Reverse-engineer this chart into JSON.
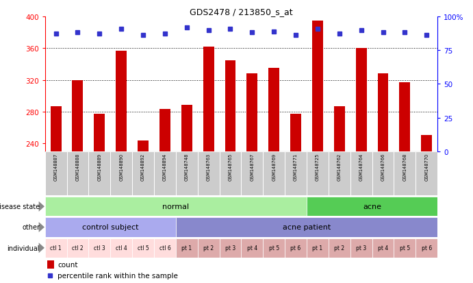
{
  "title": "GDS2478 / 213850_s_at",
  "samples": [
    "GSM148887",
    "GSM148888",
    "GSM148889",
    "GSM148890",
    "GSM148892",
    "GSM148894",
    "GSM148748",
    "GSM148763",
    "GSM148765",
    "GSM148767",
    "GSM148769",
    "GSM148771",
    "GSM148725",
    "GSM148762",
    "GSM148764",
    "GSM148766",
    "GSM148768",
    "GSM148770"
  ],
  "counts": [
    287,
    320,
    277,
    357,
    244,
    283,
    289,
    362,
    345,
    328,
    335,
    277,
    395,
    287,
    360,
    328,
    317,
    251
  ],
  "percentile_ranks": [
    87,
    88,
    87,
    91,
    86,
    87,
    92,
    90,
    91,
    88,
    89,
    86,
    91,
    87,
    90,
    88,
    88,
    86
  ],
  "ylim_left": [
    230,
    400
  ],
  "ylim_right": [
    0,
    100
  ],
  "yticks_left": [
    240,
    280,
    320,
    360,
    400
  ],
  "yticks_right": [
    0,
    25,
    50,
    75,
    100
  ],
  "bar_color": "#cc0000",
  "dot_color": "#3333cc",
  "disease_state_normal_color": "#aaeea0",
  "disease_state_acne_color": "#55cc55",
  "other_control_color": "#aaaaee",
  "other_acne_color": "#8888cc",
  "individual_control_color": "#ffdddd",
  "individual_acne_color": "#ddaaaa",
  "individual_labels": [
    "ctl 1",
    "ctl 2",
    "ctl 3",
    "ctl 4",
    "ctl 5",
    "ctl 6",
    "pt 1",
    "pt 2",
    "pt 3",
    "pt 4",
    "pt 5",
    "pt 6",
    "pt 1",
    "pt 2",
    "pt 3",
    "pt 4",
    "pt 5",
    "pt 6"
  ],
  "legend_count_color": "#cc0000",
  "legend_dot_color": "#3333cc",
  "sample_bg_color": "#cccccc",
  "row_label_color": "#333333"
}
